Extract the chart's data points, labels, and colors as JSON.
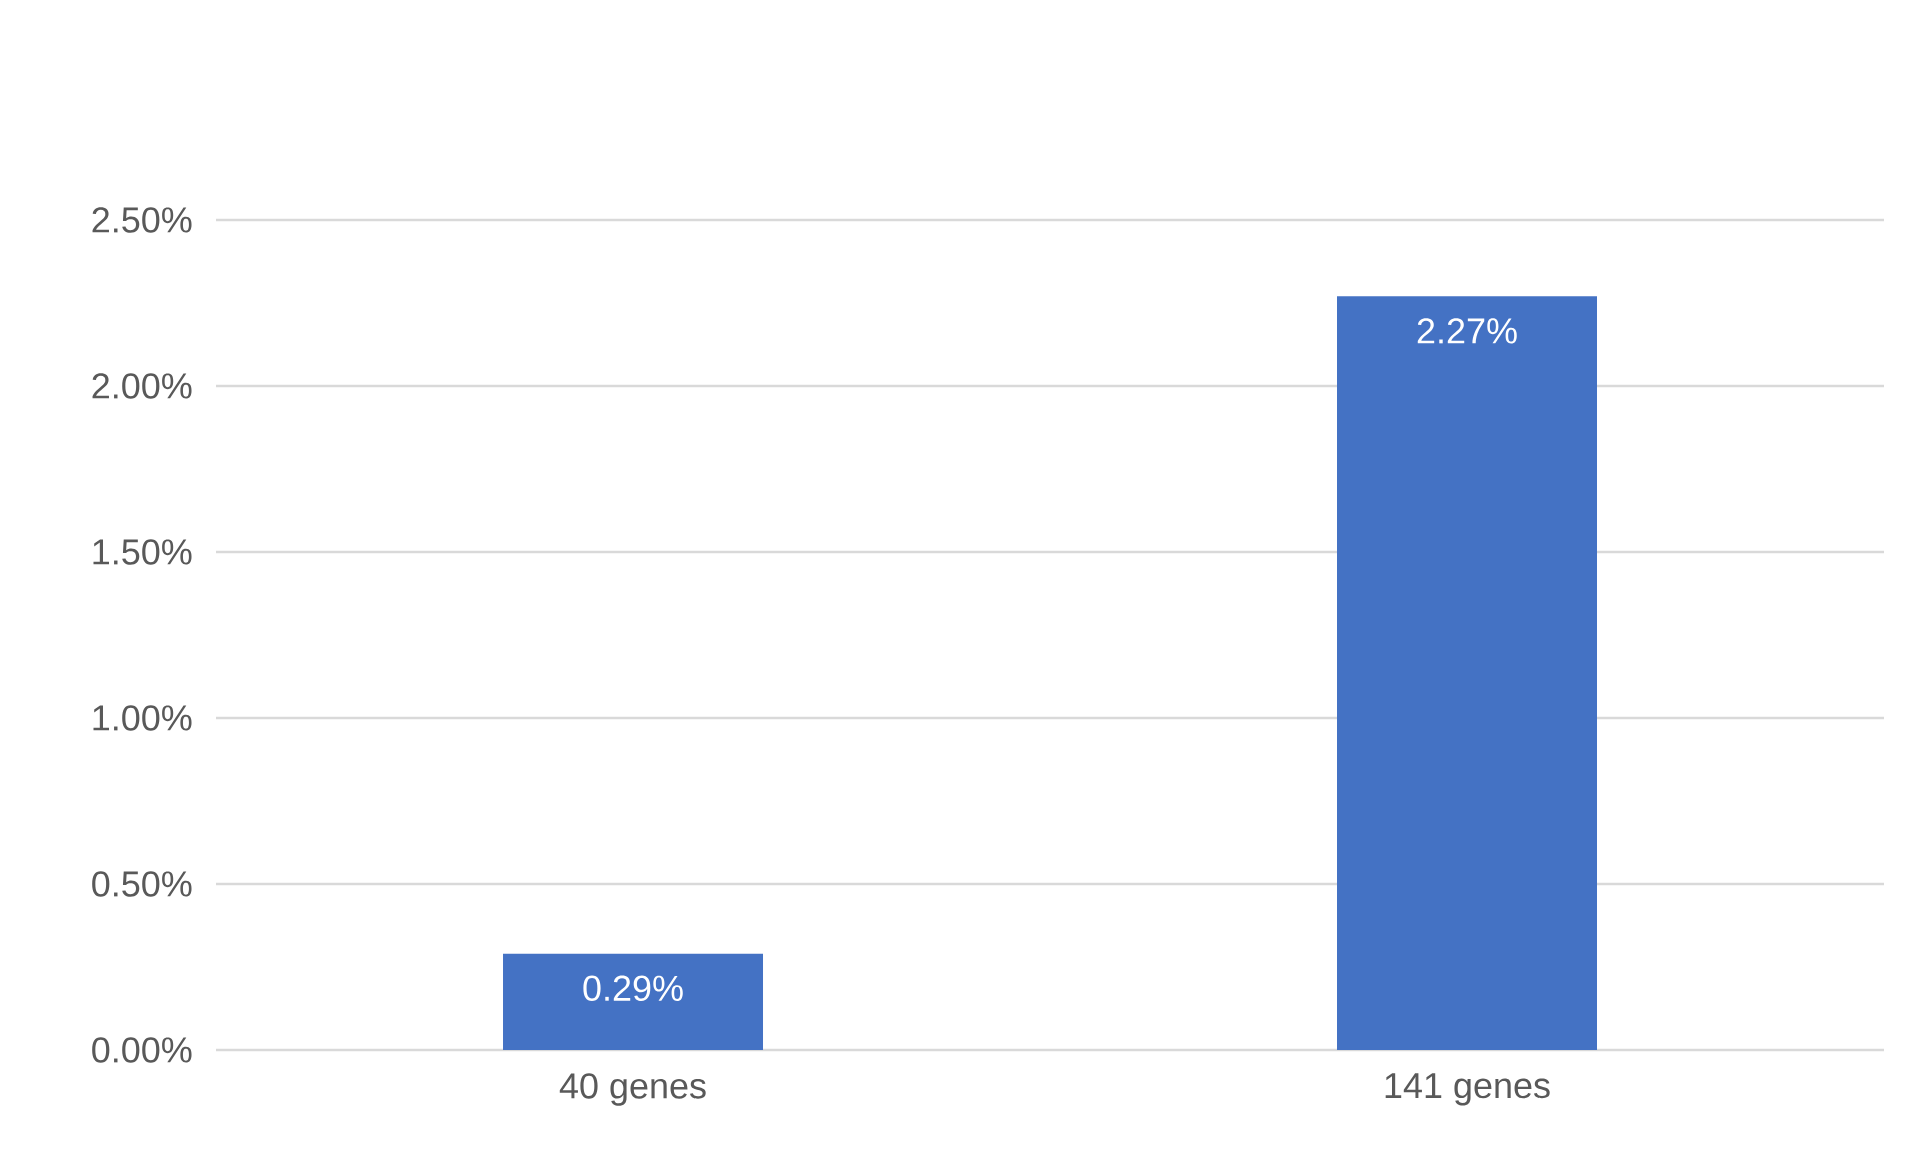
{
  "chart_data": {
    "type": "bar",
    "categories": [
      "40 genes",
      "141 genes"
    ],
    "values": [
      0.29,
      2.27
    ],
    "value_labels": [
      "0.29%",
      "2.27%"
    ],
    "color": "#4472c4",
    "ylim": [
      0,
      2.5
    ],
    "yticks": [
      {
        "value": 0,
        "label": "0.00%"
      },
      {
        "value": 0.5,
        "label": "0.50%"
      },
      {
        "value": 1,
        "label": "1.00%"
      },
      {
        "value": 1.5,
        "label": "1.50%"
      },
      {
        "value": 2,
        "label": "2.00%"
      },
      {
        "value": 2.5,
        "label": "2.50%"
      }
    ],
    "grid": "y"
  }
}
